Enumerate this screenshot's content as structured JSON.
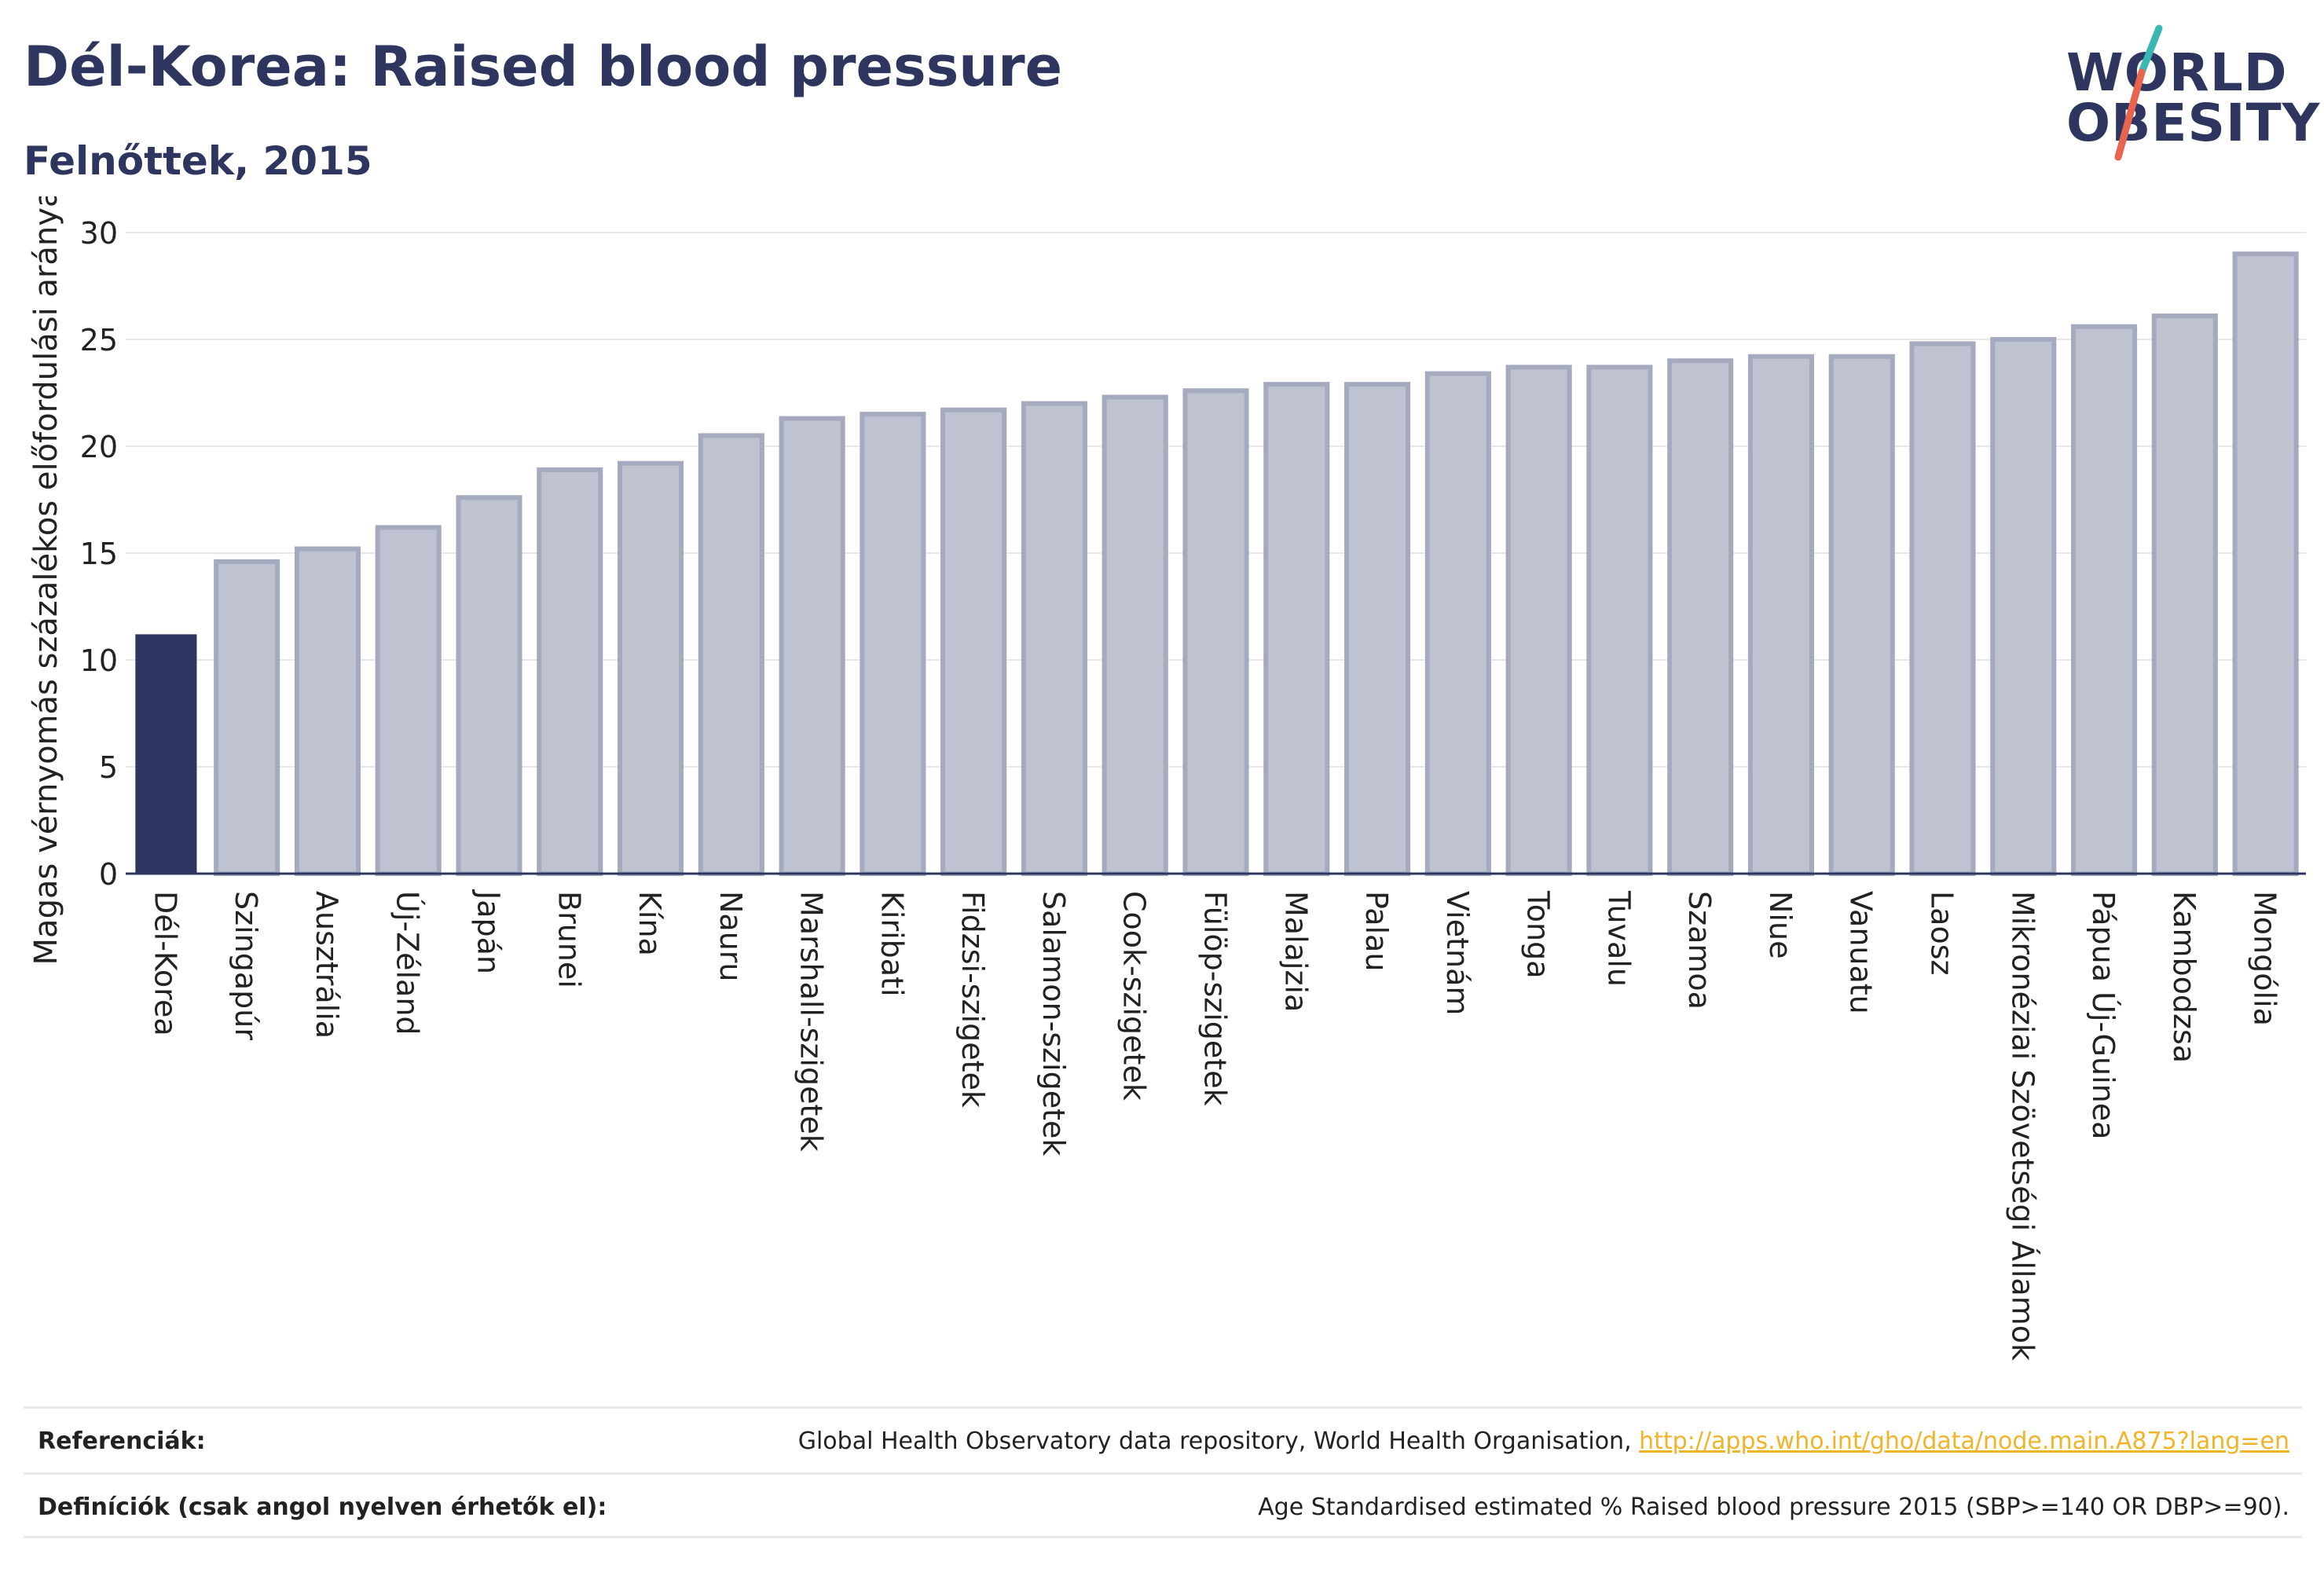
{
  "header": {
    "title": "Dél-Korea: Raised blood pressure",
    "subtitle": "Felnőttek, 2015"
  },
  "logo": {
    "line1": "WORLD",
    "line2": "OBESITY"
  },
  "colors": {
    "highlight_bar": "#2d3561",
    "other_bar": "#bfc2d0",
    "other_bar_border": "#a6aabe",
    "text": "#2e3660",
    "link": "#f0b429"
  },
  "chart_data": {
    "type": "bar",
    "ylabel": "Magas vérnyomás százalékos előfordulási aránya",
    "ylim": [
      0,
      30
    ],
    "yticks": [
      0,
      5,
      10,
      15,
      20,
      25,
      30
    ],
    "grid": true,
    "highlight": "Dél-Korea",
    "categories": [
      "Dél-Korea",
      "Szingapúr",
      "Ausztrália",
      "Új-Zéland",
      "Japán",
      "Brunei",
      "Kína",
      "Nauru",
      "Marshall-szigetek",
      "Kiribati",
      "Fidzsi-szigetek",
      "Salamon-szigetek",
      "Cook-szigetek",
      "Fülöp-szigetek",
      "Malajzia",
      "Palau",
      "Vietnám",
      "Tonga",
      "Tuvalu",
      "Szamoa",
      "Niue",
      "Vanuatu",
      "Laosz",
      "Mikronéziai Szövetségi Államok",
      "Pápua Új-Guinea",
      "Kambodzsa",
      "Mongólia"
    ],
    "values": [
      11.2,
      14.6,
      15.2,
      16.2,
      17.6,
      18.9,
      19.2,
      20.5,
      21.3,
      21.5,
      21.7,
      22.0,
      22.3,
      22.6,
      22.9,
      22.9,
      23.4,
      23.7,
      23.7,
      24.0,
      24.2,
      24.2,
      24.8,
      25.0,
      25.6,
      26.1,
      29.0
    ]
  },
  "footer": {
    "references_label": "Referenciák:",
    "references_text": "Global Health Observatory data repository, World Health Organisation, ",
    "references_link": "http://apps.who.int/gho/data/node.main.A875?lang=en",
    "definitions_label": "Definíciók (csak angol nyelven érhetők el):",
    "definitions_text": "Age Standardised estimated % Raised blood pressure 2015 (SBP>=140 OR DBP>=90)."
  }
}
